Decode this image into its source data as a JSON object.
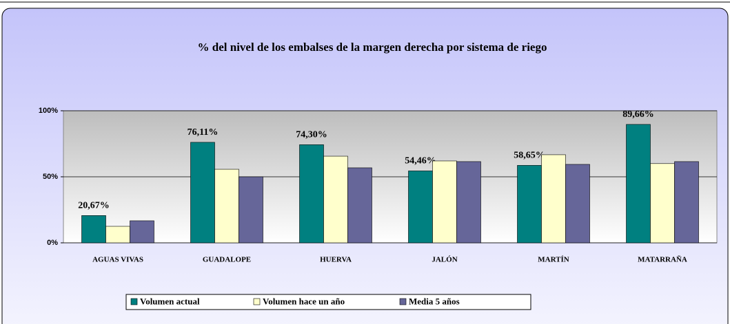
{
  "chart_data": {
    "type": "bar",
    "title": "% del nivel de los embalses de la margen derecha por sistema de riego",
    "categories": [
      "AGUAS VIVAS",
      "GUADALOPE",
      "HUERVA",
      "JALÓN",
      "MARTÍN",
      "MATARRAÑA"
    ],
    "series": [
      {
        "name": "Volumen actual",
        "color": "#008080",
        "values": [
          20.67,
          76.11,
          74.3,
          54.46,
          58.65,
          89.66
        ],
        "value_labels": [
          "20,67%",
          "76,11%",
          "74,30%",
          "54,46%",
          "58,65%",
          "89,66%"
        ]
      },
      {
        "name": "Volumen hace un año",
        "color": "#ffffcc",
        "values": [
          12.5,
          55.7,
          65.6,
          62,
          66.7,
          60
        ]
      },
      {
        "name": "Media 5 años",
        "color": "#666699",
        "values": [
          16.7,
          50,
          56.8,
          61.5,
          59.4,
          61.5
        ]
      }
    ],
    "ylim": [
      0,
      100
    ],
    "yticks": [
      {
        "value": 0,
        "label": "0%"
      },
      {
        "value": 50,
        "label": "50%"
      },
      {
        "value": 100,
        "label": "100%"
      }
    ],
    "grid": true,
    "legend": "bottom"
  }
}
